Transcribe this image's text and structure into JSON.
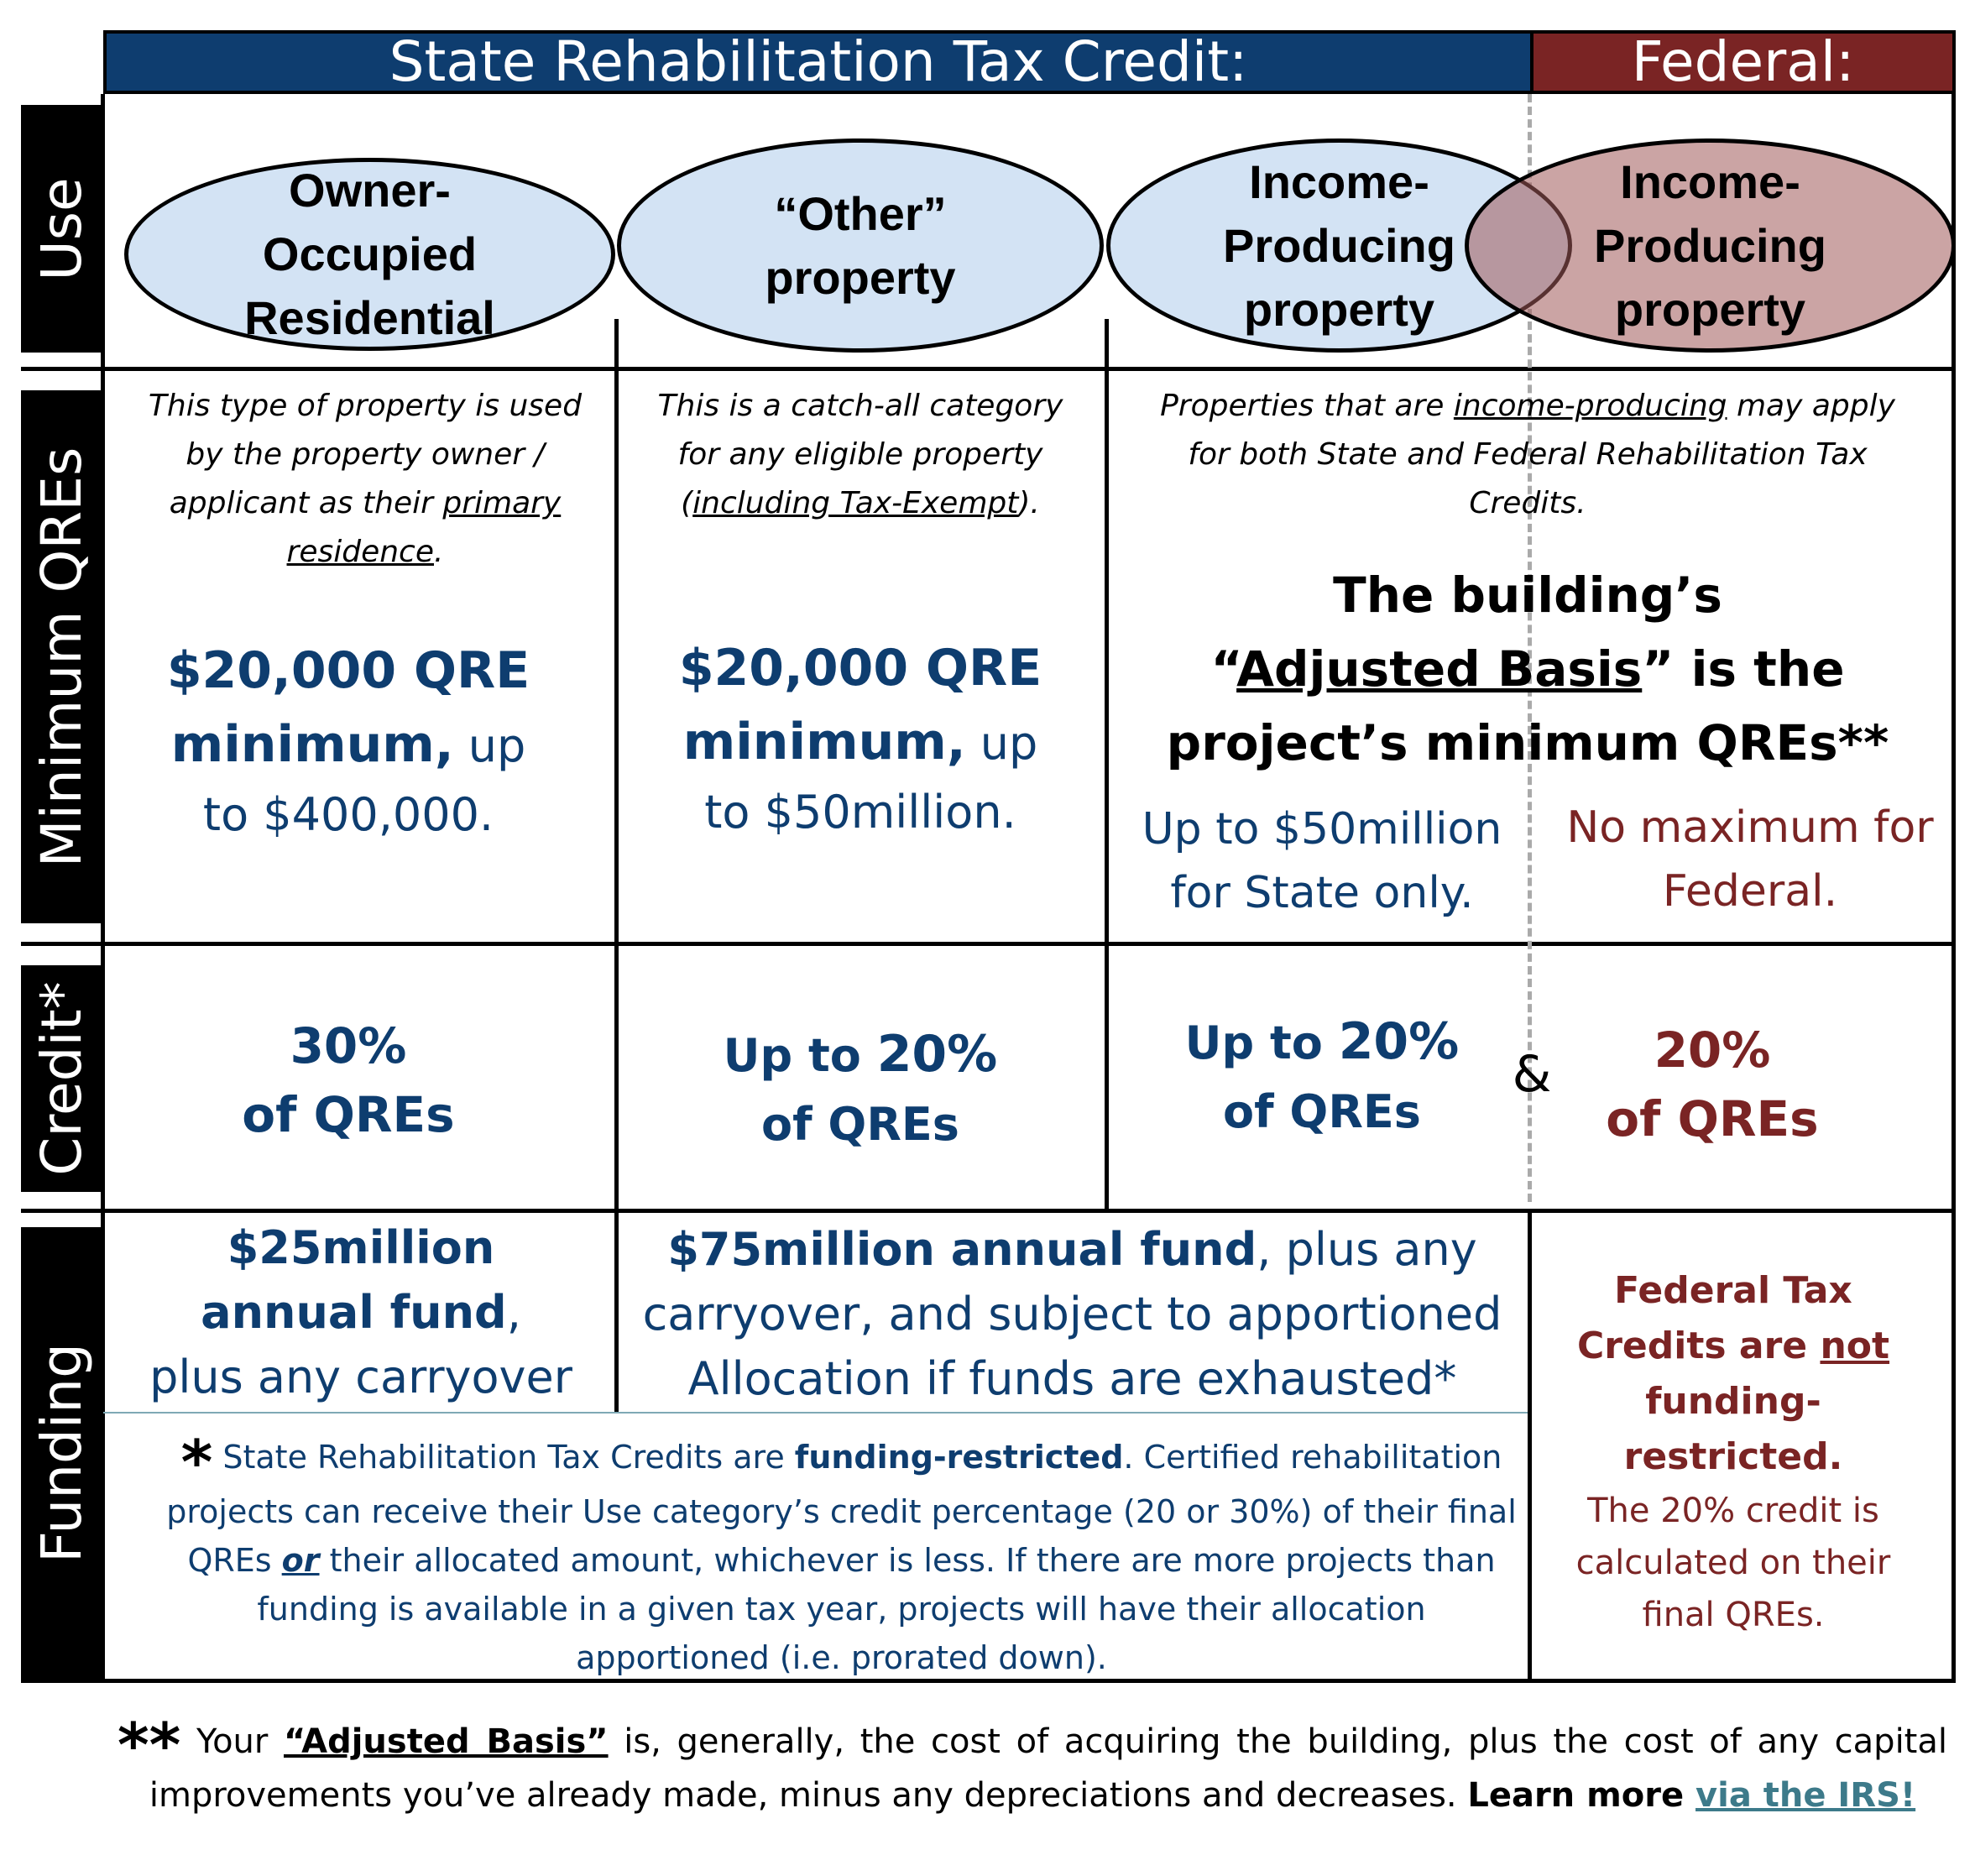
{
  "header": {
    "state": "State Rehabilitation Tax Credit:",
    "federal": "Federal:"
  },
  "row_labels": {
    "use": "Use",
    "minimum": "Minimum QREs",
    "credit": "Credit*",
    "funding": "Funding"
  },
  "use": {
    "owner_1": "Owner-",
    "owner_2": "Occupied",
    "owner_3": "Residential",
    "other_1": "“Other”",
    "other_2": "property",
    "income_1": "Income-",
    "income_2": "Producing",
    "income_3": "property",
    "fed_1": "Income-",
    "fed_2": "Producing",
    "fed_3": "property"
  },
  "minimum": {
    "owner_desc_a": "This type of property is used by the property owner / applicant as their ",
    "owner_desc_u": "primary residence",
    "owner_desc_b": ".",
    "owner_amount": "$20,000 QRE minimum,",
    "owner_up": " up",
    "owner_max": "to $400,000.",
    "other_desc_a": "This is a catch-all category for any eligible property (",
    "other_desc_u": "including Tax-Exempt",
    "other_desc_b": ").",
    "other_amount": "$20,000 QRE minimum,",
    "other_up": " up",
    "other_max": "to $50million.",
    "income_desc_a": "Properties that are ",
    "income_desc_u": "income-producing",
    "income_desc_b": " may apply for both State and Federal Rehabilitation Tax Credits.",
    "basis_1": "The building’s",
    "basis_q1": "“",
    "basis_u": "Adjusted Basis",
    "basis_q2": "” is the",
    "basis_3": "project’s minimum QREs**",
    "state_max": "Up to $50million for State only.",
    "fed_max": "No maximum for Federal."
  },
  "credit": {
    "owner_pct": "30%",
    "owner_of": "of QREs",
    "other_up": "Up to ",
    "other_pct": "20%",
    "other_of": "of QREs",
    "income_up": "Up to ",
    "income_pct": "20%",
    "income_of": "of QREs",
    "amp": "&",
    "fed_pct": "20%",
    "fed_of": "of QREs"
  },
  "funding": {
    "owner_bold_1": "$25million",
    "owner_bold_2": "annual fund",
    "owner_comma": ",",
    "owner_rest": "plus any carryover",
    "other_bold": "$75million annual fund",
    "other_rest_1": ", plus any",
    "other_rest_2": "carryover, and subject to apportioned",
    "other_rest_3": "Allocation if funds are exhausted*",
    "note_star": "*",
    "note_a": "State Rehabilitation Tax Credits are ",
    "note_bold": "funding-restricted",
    "note_b": ". Certified rehabilitation projects can receive their Use category’s credit percentage (20 or 30%) of their final QREs ",
    "note_or": "or",
    "note_c": " their allocated amount, whichever is less. If there are more projects than funding is available in a given tax year, projects will have their allocation apportioned (i.e. prorated down).",
    "fed_bold_a": "Federal Tax Credits are ",
    "fed_bold_u": "not",
    "fed_bold_b": " funding-restricted.",
    "fed_rest": "The 20% credit is calculated on their final QREs."
  },
  "footnote": {
    "stars": "**",
    "a": " Your ",
    "term": "“Adjusted Basis”",
    "b": " is, generally, the cost of acquiring the building, plus the cost of any capital improvements you’ve already made, minus any depreciations and decreases. ",
    "learn": "Learn more ",
    "link": "via the IRS!"
  },
  "colors": {
    "navy": "#0e3d6f",
    "maroon": "#7a2424",
    "oval_blue": "#d3e3f4",
    "oval_red": "#c9a0a0"
  }
}
